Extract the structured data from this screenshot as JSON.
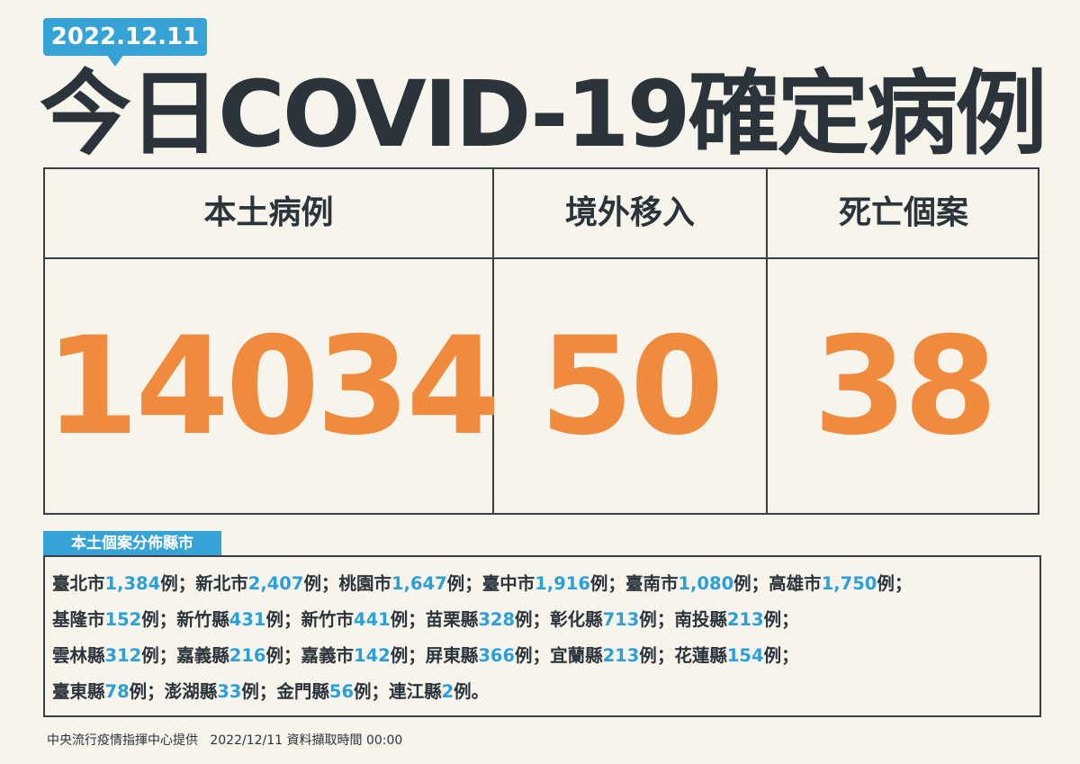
{
  "date": "2022.12.11",
  "title": "今日COVID-19確定病例",
  "table": {
    "headers": [
      "本土病例",
      "境外移入",
      "死亡個案"
    ],
    "values": [
      14034,
      50,
      38
    ]
  },
  "distribution": {
    "label": "本土個案分佈縣市",
    "rows": [
      [
        {
          "name": "臺北市",
          "count": "1,384",
          "unit": "例",
          "sep": "；"
        },
        {
          "name": "新北市",
          "count": "2,407",
          "unit": "例",
          "sep": "；"
        },
        {
          "name": "桃園市",
          "count": "1,647",
          "unit": "例",
          "sep": "；"
        },
        {
          "name": "臺中市",
          "count": "1,916",
          "unit": "例",
          "sep": "；"
        },
        {
          "name": "臺南市",
          "count": "1,080",
          "unit": "例",
          "sep": "；"
        },
        {
          "name": "高雄市",
          "count": "1,750",
          "unit": "例",
          "sep": "；"
        }
      ],
      [
        {
          "name": "基隆市",
          "count": "152",
          "unit": "例",
          "sep": "；"
        },
        {
          "name": "新竹縣",
          "count": "431",
          "unit": "例",
          "sep": "；"
        },
        {
          "name": "新竹市",
          "count": "441",
          "unit": "例",
          "sep": "；"
        },
        {
          "name": "苗栗縣",
          "count": "328",
          "unit": "例",
          "sep": "；"
        },
        {
          "name": "彰化縣",
          "count": "713",
          "unit": "例",
          "sep": "；"
        },
        {
          "name": "南投縣",
          "count": "213",
          "unit": "例",
          "sep": "；"
        }
      ],
      [
        {
          "name": "雲林縣",
          "count": "312",
          "unit": "例",
          "sep": "；"
        },
        {
          "name": "嘉義縣",
          "count": "216",
          "unit": "例",
          "sep": "；"
        },
        {
          "name": "嘉義市",
          "count": "142",
          "unit": "例",
          "sep": "；"
        },
        {
          "name": "屏東縣",
          "count": "366",
          "unit": "例",
          "sep": "；"
        },
        {
          "name": "宜蘭縣",
          "count": "213",
          "unit": "例",
          "sep": "；"
        },
        {
          "name": "花蓮縣",
          "count": "154",
          "unit": "例",
          "sep": "；"
        }
      ],
      [
        {
          "name": "臺東縣",
          "count": "78",
          "unit": "例",
          "sep": "；"
        },
        {
          "name": "澎湖縣",
          "count": "33",
          "unit": "例",
          "sep": "；"
        },
        {
          "name": "金門縣",
          "count": "56",
          "unit": "例",
          "sep": "；"
        },
        {
          "name": "連江縣",
          "count": "2",
          "unit": "例",
          "sep": "。"
        }
      ]
    ]
  },
  "footer": {
    "source": "中央流行疫情指揮中心提供",
    "time": "2022/12/11 資料擷取時間 00:00"
  }
}
